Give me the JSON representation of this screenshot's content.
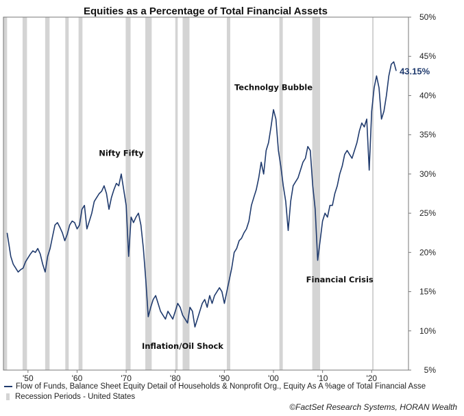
{
  "chart_data": {
    "type": "line",
    "title": "Equities as a Percentage of Total Financial Assets",
    "x_tick_labels": [
      "'50",
      "'60",
      "'70",
      "'80",
      "'90",
      "'00",
      "'10",
      "'20"
    ],
    "x_tick_years": [
      1950,
      1960,
      1970,
      1980,
      1990,
      2000,
      2010,
      2020
    ],
    "xlim": [
      1945,
      2027.5
    ],
    "ylim": [
      5,
      50
    ],
    "y_tick_labels": [
      "5%",
      "10%",
      "15%",
      "20%",
      "25%",
      "30%",
      "35%",
      "40%",
      "45%",
      "50%"
    ],
    "y_ticks": [
      5,
      10,
      15,
      20,
      25,
      30,
      35,
      40,
      45,
      50
    ],
    "y_axis_side": "right",
    "grid": false,
    "legend_position": "bottom",
    "series": [
      {
        "name": "Flow of Funds, Balance Sheet Equity Detail of Households & Nonprofit Org., Equity As A %age of Total Financial Asse",
        "color": "#1f3a6d",
        "x": [
          1945.75,
          1946.0,
          1946.5,
          1947.0,
          1947.5,
          1948.0,
          1948.5,
          1949.0,
          1949.5,
          1950.0,
          1950.5,
          1951.0,
          1951.5,
          1952.0,
          1952.5,
          1953.0,
          1953.5,
          1954.0,
          1954.5,
          1955.0,
          1955.5,
          1956.0,
          1956.5,
          1957.0,
          1957.5,
          1958.0,
          1958.5,
          1959.0,
          1959.5,
          1960.0,
          1960.5,
          1961.0,
          1961.5,
          1962.0,
          1962.5,
          1963.0,
          1963.5,
          1964.0,
          1964.5,
          1965.0,
          1965.5,
          1966.0,
          1966.5,
          1967.0,
          1967.5,
          1968.0,
          1968.5,
          1969.0,
          1969.5,
          1970.0,
          1970.5,
          1971.0,
          1971.5,
          1972.0,
          1972.5,
          1973.0,
          1973.5,
          1974.0,
          1974.5,
          1975.0,
          1975.5,
          1976.0,
          1976.5,
          1977.0,
          1977.5,
          1978.0,
          1978.5,
          1979.0,
          1979.5,
          1980.0,
          1980.5,
          1981.0,
          1981.5,
          1982.0,
          1982.5,
          1983.0,
          1983.5,
          1984.0,
          1984.5,
          1985.0,
          1985.5,
          1986.0,
          1986.5,
          1987.0,
          1987.5,
          1988.0,
          1988.5,
          1989.0,
          1989.5,
          1990.0,
          1990.5,
          1991.0,
          1991.5,
          1992.0,
          1992.5,
          1993.0,
          1993.5,
          1994.0,
          1994.5,
          1995.0,
          1995.5,
          1996.0,
          1996.5,
          1997.0,
          1997.5,
          1998.0,
          1998.5,
          1999.0,
          1999.5,
          2000.0,
          2000.5,
          2001.0,
          2001.5,
          2002.0,
          2002.5,
          2003.0,
          2003.5,
          2004.0,
          2004.5,
          2005.0,
          2005.5,
          2006.0,
          2006.5,
          2007.0,
          2007.5,
          2008.0,
          2008.5,
          2009.0,
          2009.5,
          2010.0,
          2010.5,
          2011.0,
          2011.5,
          2012.0,
          2012.5,
          2013.0,
          2013.5,
          2014.0,
          2014.5,
          2015.0,
          2015.5,
          2016.0,
          2016.5,
          2017.0,
          2017.5,
          2018.0,
          2018.5,
          2019.0,
          2019.5,
          2020.0,
          2020.5,
          2021.0,
          2021.5,
          2022.0,
          2022.5,
          2023.0,
          2023.5,
          2024.0,
          2024.5,
          2025.0
        ],
        "y": [
          22.5,
          21.5,
          19.5,
          18.5,
          18.0,
          17.5,
          17.8,
          18.0,
          18.8,
          19.3,
          19.8,
          20.2,
          20.0,
          20.5,
          19.8,
          18.5,
          17.5,
          19.5,
          20.5,
          22.0,
          23.5,
          23.8,
          23.2,
          22.5,
          21.5,
          22.3,
          23.5,
          24.0,
          23.8,
          23.0,
          23.5,
          25.5,
          26.0,
          23.0,
          24.0,
          25.0,
          26.5,
          27.0,
          27.5,
          27.8,
          28.5,
          27.5,
          25.5,
          27.0,
          28.0,
          28.8,
          28.5,
          30.0,
          28.0,
          26.0,
          19.5,
          24.5,
          23.8,
          24.5,
          25.0,
          23.5,
          20.5,
          16.5,
          11.8,
          13.0,
          14.0,
          14.5,
          13.5,
          12.5,
          12.0,
          11.5,
          12.5,
          12.0,
          11.5,
          12.5,
          13.5,
          13.0,
          12.0,
          11.5,
          11.0,
          13.0,
          12.5,
          10.5,
          11.5,
          12.5,
          13.5,
          14.0,
          13.0,
          14.5,
          13.5,
          14.5,
          15.0,
          15.5,
          15.0,
          13.5,
          15.0,
          16.5,
          18.0,
          20.0,
          20.5,
          21.5,
          21.8,
          22.5,
          23.0,
          24.0,
          26.0,
          27.0,
          28.0,
          29.5,
          31.5,
          30.0,
          33.0,
          34.0,
          36.0,
          38.2,
          37.0,
          33.0,
          31.0,
          28.5,
          26.5,
          22.8,
          26.5,
          28.5,
          29.0,
          29.5,
          30.5,
          31.5,
          32.0,
          33.5,
          33.0,
          28.5,
          25.5,
          19.0,
          21.5,
          24.0,
          25.0,
          24.5,
          26.0,
          26.0,
          27.5,
          28.5,
          30.0,
          31.0,
          32.5,
          33.0,
          32.5,
          32.0,
          33.0,
          34.0,
          35.5,
          36.5,
          36.0,
          37.0,
          30.5,
          38.0,
          41.0,
          42.5,
          41.0,
          37.0,
          38.0,
          40.0,
          42.5,
          44.0,
          44.3,
          43.15
        ]
      }
    ],
    "recession_periods": [
      [
        1945.0,
        1945.75
      ],
      [
        1948.9,
        1949.8
      ],
      [
        1953.5,
        1954.4
      ],
      [
        1957.6,
        1958.3
      ],
      [
        1960.3,
        1961.1
      ],
      [
        1969.9,
        1970.9
      ],
      [
        1973.9,
        1975.2
      ],
      [
        1980.0,
        1980.5
      ],
      [
        1981.5,
        1982.9
      ],
      [
        1990.5,
        1991.2
      ],
      [
        2001.2,
        2001.9
      ],
      [
        2007.9,
        2009.5
      ],
      [
        2020.1,
        2020.4
      ]
    ],
    "recession_legend": "Recession Periods - United States",
    "recession_color": "#d4d4d4",
    "last_value_label": "43.15%",
    "annotations": [
      {
        "text": "Nifty Fifty",
        "x": 1969.0,
        "y": 32.3
      },
      {
        "text": "Technolgy Bubble",
        "x": 2000.0,
        "y": 40.7
      },
      {
        "text": "Inflation/Oil Shock",
        "x": 1981.5,
        "y": 7.7
      },
      {
        "text": "Financial Crisis",
        "x": 2013.5,
        "y": 16.2
      }
    ]
  },
  "source": "©FactSet Research Systems, HORAN Wealth"
}
